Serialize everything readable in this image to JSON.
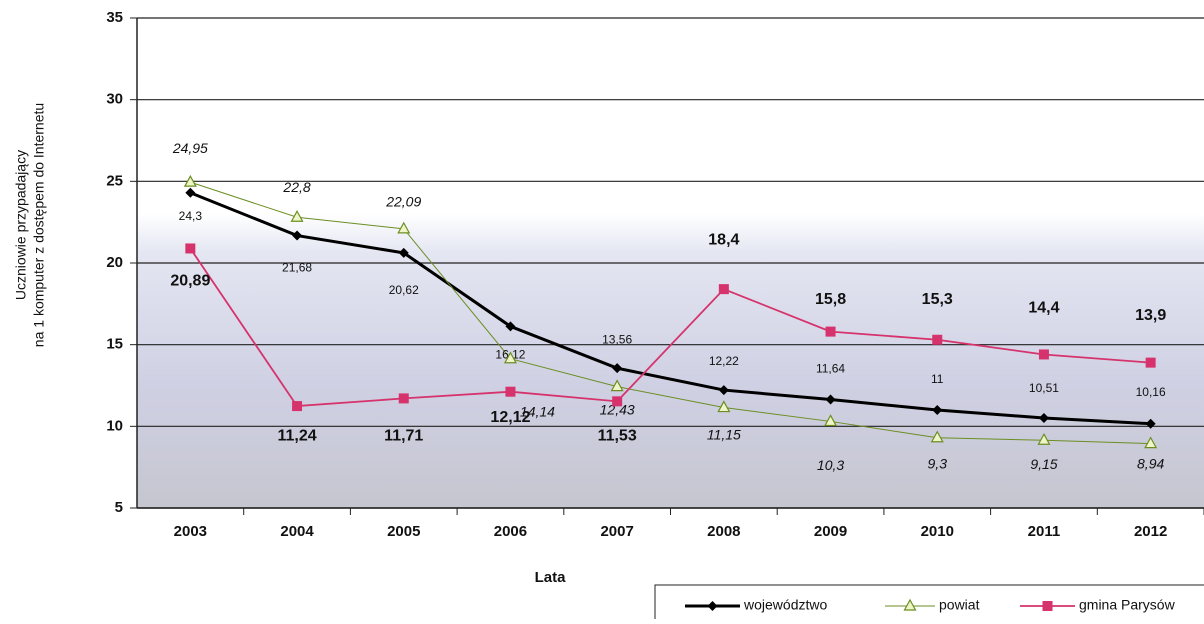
{
  "chart_data": {
    "type": "line",
    "ylabel": [
      "Uczniowie przypadający",
      "na 1 komputer z dostępem do Internetu"
    ],
    "xlabel": "Lata",
    "categories": [
      "2003",
      "2004",
      "2005",
      "2006",
      "2007",
      "2008",
      "2009",
      "2010",
      "2011",
      "2012"
    ],
    "series": [
      {
        "name": "województwo",
        "color": "#000000",
        "marker": "diamond",
        "values": [
          24.3,
          21.68,
          20.62,
          16.12,
          13.56,
          12.22,
          11.64,
          11,
          10.51,
          10.16
        ],
        "value_labels": [
          "24,3",
          "21,68",
          "20,62",
          "16,12",
          "13,56",
          "12,22",
          "11,64",
          "11",
          "10,51",
          "10,16"
        ]
      },
      {
        "name": "powiat",
        "color": "#6b8e23",
        "marker": "triangle",
        "values": [
          24.95,
          22.8,
          22.09,
          14.14,
          12.43,
          11.15,
          10.3,
          9.3,
          9.15,
          8.94
        ],
        "value_labels": [
          "24,95",
          "22,8",
          "22,09",
          "14,14",
          "12,43",
          "11,15",
          "10,3",
          "9,3",
          "9,15",
          "8,94"
        ]
      },
      {
        "name": "gmina Parysów",
        "color": "#d6336c",
        "marker": "square",
        "values": [
          20.89,
          11.24,
          11.71,
          12.12,
          11.53,
          18.4,
          15.8,
          15.3,
          14.4,
          13.9
        ],
        "value_labels": [
          "20,89",
          "11,24",
          "11,71",
          "12,12",
          "11,53",
          "18,4",
          "15,8",
          "15,3",
          "14,4",
          "13,9"
        ]
      }
    ],
    "ylim": [
      5,
      35
    ],
    "yticks": [
      5,
      10,
      15,
      20,
      25,
      30,
      35
    ],
    "grid": true,
    "legend": "bottom-right"
  }
}
